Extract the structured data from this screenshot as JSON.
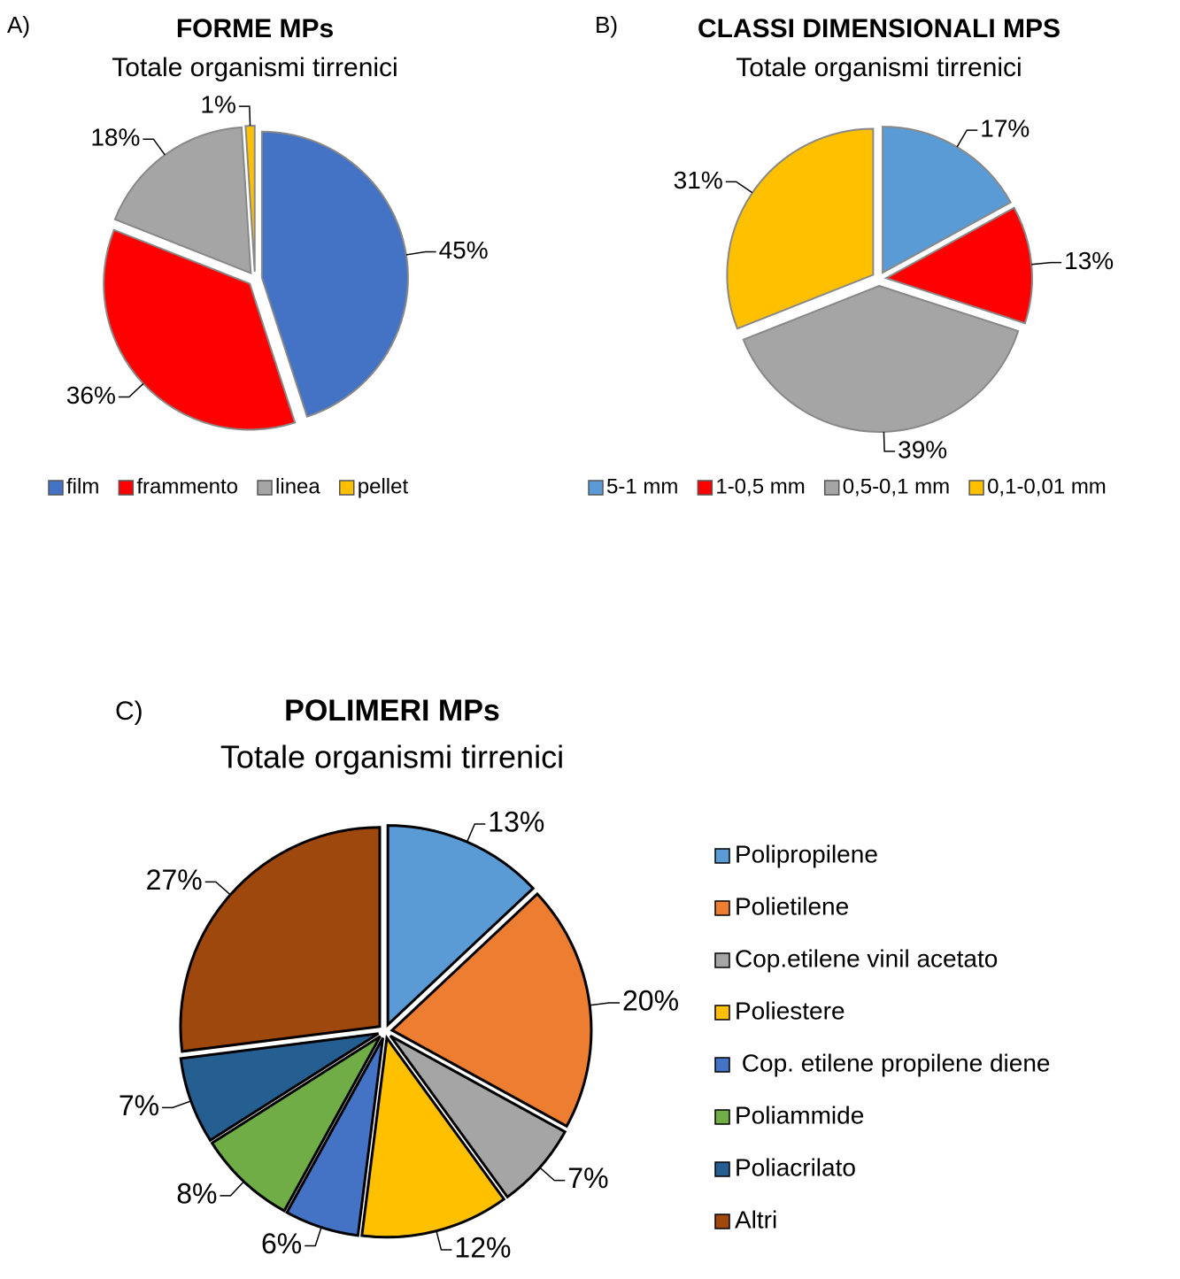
{
  "chart_data": [
    {
      "type": "pie",
      "label": "A)",
      "title": "FORME MPs",
      "subtitle": "Totale organismi tirrenici",
      "categories": [
        "film",
        "frammento",
        "linea",
        "pellet"
      ],
      "values": [
        45,
        36,
        18,
        1
      ],
      "value_labels": [
        "45%",
        "36%",
        "18%",
        "1%"
      ],
      "colors": [
        "#4472c4",
        "#ff0000",
        "#a5a5a5",
        "#ffc000"
      ],
      "legend": "bottom"
    },
    {
      "type": "pie",
      "label": "B)",
      "title": "CLASSI DIMENSIONALI MPS",
      "subtitle": "Totale organismi tirrenici",
      "categories": [
        "5-1 mm",
        "1-0,5 mm",
        "0,5-0,1 mm",
        "0,1-0,01 mm"
      ],
      "values": [
        17,
        13,
        39,
        31
      ],
      "value_labels": [
        "17%",
        "13%",
        "39%",
        "31%"
      ],
      "colors": [
        "#5b9bd5",
        "#ff0000",
        "#a5a5a5",
        "#ffc000"
      ],
      "legend": "bottom"
    },
    {
      "type": "pie",
      "label": "C)",
      "title": "POLIMERI MPs",
      "subtitle": "Totale organismi tirrenici",
      "categories": [
        "Polipropilene",
        "Polietilene",
        "Cop.etilene vinil acetato",
        "Poliestere",
        " Cop. etilene propilene diene",
        "Poliammide",
        "Poliacrilato",
        "Altri"
      ],
      "values": [
        13,
        20,
        7,
        12,
        6,
        8,
        7,
        27
      ],
      "value_labels": [
        "13%",
        "20%",
        "7%",
        "12%",
        "6%",
        "8%",
        "7%",
        "27%"
      ],
      "colors": [
        "#5b9bd5",
        "#ed7d31",
        "#a5a5a5",
        "#ffc000",
        "#4472c4",
        "#70ad47",
        "#255e91",
        "#9e480e"
      ],
      "legend": "right"
    }
  ]
}
